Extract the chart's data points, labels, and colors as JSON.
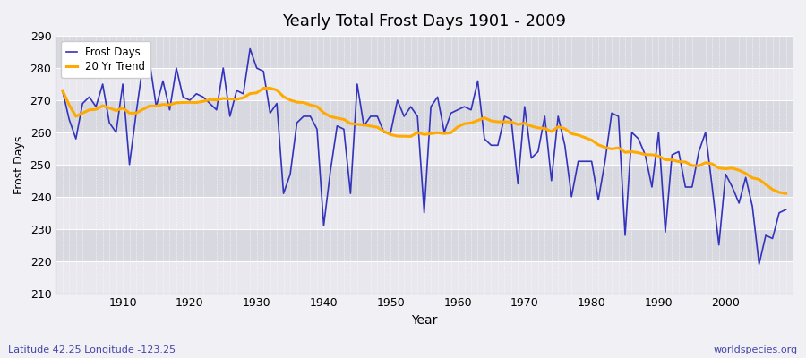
{
  "title": "Yearly Total Frost Days 1901 - 2009",
  "xlabel": "Year",
  "ylabel": "Frost Days",
  "lat_lon_label": "Latitude 42.25 Longitude -123.25",
  "watermark": "worldspecies.org",
  "legend_frost": "Frost Days",
  "legend_trend": "20 Yr Trend",
  "frost_color": "#3333bb",
  "trend_color": "#ffaa00",
  "bg_color": "#f0f0f5",
  "plot_bg_light": "#e8e8ee",
  "plot_bg_dark": "#d8d8e0",
  "ylim": [
    210,
    290
  ],
  "yticks": [
    210,
    220,
    230,
    240,
    250,
    260,
    270,
    280,
    290
  ],
  "xticks": [
    1910,
    1920,
    1930,
    1940,
    1950,
    1960,
    1970,
    1980,
    1990,
    2000
  ],
  "years": [
    1901,
    1902,
    1903,
    1904,
    1905,
    1906,
    1907,
    1908,
    1909,
    1910,
    1911,
    1912,
    1913,
    1914,
    1915,
    1916,
    1917,
    1918,
    1919,
    1920,
    1921,
    1922,
    1923,
    1924,
    1925,
    1926,
    1927,
    1928,
    1929,
    1930,
    1931,
    1932,
    1933,
    1934,
    1935,
    1936,
    1937,
    1938,
    1939,
    1940,
    1941,
    1942,
    1943,
    1944,
    1945,
    1946,
    1947,
    1948,
    1949,
    1950,
    1951,
    1952,
    1953,
    1954,
    1955,
    1956,
    1957,
    1958,
    1959,
    1960,
    1961,
    1962,
    1963,
    1964,
    1965,
    1966,
    1967,
    1968,
    1969,
    1970,
    1971,
    1972,
    1973,
    1974,
    1975,
    1976,
    1977,
    1978,
    1979,
    1980,
    1981,
    1982,
    1983,
    1984,
    1985,
    1986,
    1987,
    1988,
    1989,
    1990,
    1991,
    1992,
    1993,
    1994,
    1995,
    1996,
    1997,
    1998,
    1999,
    2000,
    2001,
    2002,
    2003,
    2004,
    2005,
    2006,
    2007,
    2008,
    2009
  ],
  "frost_days": [
    273,
    264,
    258,
    269,
    271,
    268,
    275,
    263,
    260,
    275,
    250,
    266,
    281,
    282,
    268,
    276,
    267,
    280,
    271,
    270,
    272,
    271,
    269,
    267,
    280,
    265,
    273,
    272,
    286,
    280,
    279,
    266,
    269,
    241,
    247,
    263,
    265,
    265,
    261,
    231,
    248,
    262,
    261,
    241,
    275,
    262,
    265,
    265,
    260,
    260,
    270,
    265,
    268,
    265,
    235,
    268,
    271,
    260,
    266,
    267,
    268,
    267,
    276,
    258,
    256,
    256,
    265,
    264,
    244,
    268,
    252,
    254,
    265,
    245,
    265,
    256,
    240,
    251,
    251,
    251,
    239,
    251,
    266,
    265,
    228,
    260,
    258,
    253,
    243,
    260,
    229,
    253,
    254,
    243,
    243,
    254,
    260,
    243,
    225,
    247,
    243,
    238,
    246,
    237,
    219,
    228,
    227,
    235,
    236
  ]
}
